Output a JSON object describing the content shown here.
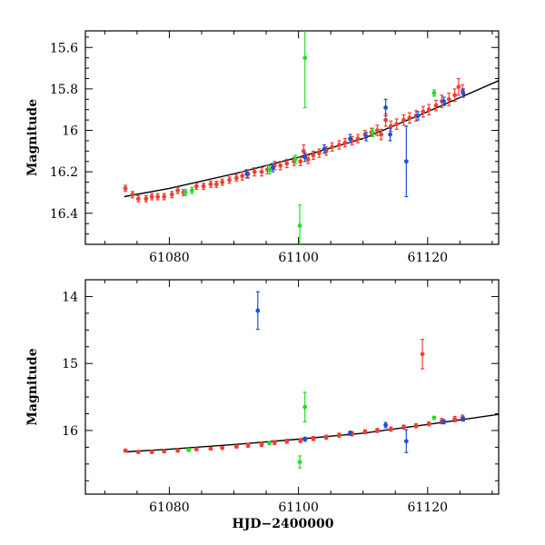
{
  "chart_data": [
    {
      "type": "scatter",
      "panel": "top",
      "xlabel": "",
      "ylabel": "Magnitude",
      "xlim": [
        61067,
        61131
      ],
      "ylim": [
        16.55,
        15.52
      ],
      "y_inverted": true,
      "x_ticks": [
        61080,
        61100,
        61120
      ],
      "y_ticks": [
        15.6,
        15.8,
        16,
        16.2,
        16.4
      ],
      "x_tick_labels": [
        "61080",
        "61100",
        "61120"
      ],
      "y_tick_labels": [
        "15.6",
        "15.8",
        "16",
        "16.2",
        "16.4"
      ],
      "model_curve": {
        "name": "model",
        "color": "#000000",
        "x": [
          61073,
          61080,
          61090,
          61100,
          61110,
          61120,
          61131
        ],
        "y": [
          16.32,
          16.28,
          16.21,
          16.13,
          16.04,
          15.91,
          15.76
        ]
      },
      "series": [
        {
          "name": "red",
          "color": "#f04030",
          "points": [
            [
              61073.2,
              16.28,
              0.015
            ],
            [
              61074.3,
              16.31,
              0.015
            ],
            [
              61075.2,
              16.33,
              0.015
            ],
            [
              61076.4,
              16.33,
              0.015
            ],
            [
              61077.3,
              16.32,
              0.015
            ],
            [
              61078.2,
              16.32,
              0.015
            ],
            [
              61079.2,
              16.32,
              0.015
            ],
            [
              61080.4,
              16.31,
              0.015
            ],
            [
              61081.3,
              16.29,
              0.015
            ],
            [
              61082.2,
              16.3,
              0.015
            ],
            [
              61084.2,
              16.27,
              0.015
            ],
            [
              61085.3,
              16.27,
              0.015
            ],
            [
              61086.4,
              16.26,
              0.015
            ],
            [
              61087.3,
              16.26,
              0.015
            ],
            [
              61088.2,
              16.25,
              0.015
            ],
            [
              61089.3,
              16.24,
              0.015
            ],
            [
              61090.4,
              16.23,
              0.015
            ],
            [
              61091.3,
              16.22,
              0.02
            ],
            [
              61092.2,
              16.21,
              0.02
            ],
            [
              61093.2,
              16.2,
              0.02
            ],
            [
              61094.3,
              16.2,
              0.02
            ],
            [
              61095.2,
              16.19,
              0.02
            ],
            [
              61096.3,
              16.17,
              0.02
            ],
            [
              61097.2,
              16.17,
              0.02
            ],
            [
              61098.2,
              16.16,
              0.02
            ],
            [
              61099.3,
              16.15,
              0.02
            ],
            [
              61100.3,
              16.15,
              0.02
            ],
            [
              61100.8,
              16.1,
              0.03
            ],
            [
              61101.5,
              16.14,
              0.02
            ],
            [
              61102.3,
              16.12,
              0.02
            ],
            [
              61103.2,
              16.11,
              0.02
            ],
            [
              61104.3,
              16.1,
              0.02
            ],
            [
              61105.2,
              16.08,
              0.02
            ],
            [
              61106.3,
              16.07,
              0.02
            ],
            [
              61107.2,
              16.06,
              0.02
            ],
            [
              61108.3,
              16.05,
              0.02
            ],
            [
              61109.2,
              16.04,
              0.02
            ],
            [
              61110.3,
              16.02,
              0.02
            ],
            [
              61111.3,
              16.01,
              0.02
            ],
            [
              61112.2,
              16.0,
              0.025
            ],
            [
              61112.8,
              16.02,
              0.025
            ],
            [
              61113.5,
              15.95,
              0.03
            ],
            [
              61114.3,
              15.98,
              0.025
            ],
            [
              61115.2,
              15.97,
              0.025
            ],
            [
              61116.3,
              15.95,
              0.025
            ],
            [
              61117.2,
              15.94,
              0.025
            ],
            [
              61118.2,
              15.93,
              0.025
            ],
            [
              61119.3,
              15.91,
              0.025
            ],
            [
              61120.2,
              15.9,
              0.025
            ],
            [
              61121.3,
              15.88,
              0.025
            ],
            [
              61122.2,
              15.86,
              0.03
            ],
            [
              61123.3,
              15.85,
              0.03
            ],
            [
              61124.2,
              15.83,
              0.03
            ],
            [
              61124.8,
              15.79,
              0.04
            ],
            [
              61125.4,
              15.81,
              0.03
            ]
          ]
        },
        {
          "name": "blue",
          "color": "#1f4fd8",
          "points": [
            [
              61092.0,
              16.21,
              0.02
            ],
            [
              61096.0,
              16.18,
              0.02
            ],
            [
              61101.0,
              16.13,
              0.02
            ],
            [
              61104.0,
              16.09,
              0.02
            ],
            [
              61108.0,
              16.04,
              0.02
            ],
            [
              61110.5,
              16.03,
              0.02
            ],
            [
              61113.5,
              15.89,
              0.04
            ],
            [
              61114.2,
              16.02,
              0.03
            ],
            [
              61116.7,
              16.15,
              0.17
            ],
            [
              61118.5,
              15.93,
              0.02
            ],
            [
              61122.5,
              15.86,
              0.02
            ],
            [
              61125.5,
              15.82,
              0.02
            ]
          ]
        },
        {
          "name": "green",
          "color": "#22dd22",
          "points": [
            [
              61082.5,
              16.3,
              0.015
            ],
            [
              61083.5,
              16.29,
              0.015
            ],
            [
              61095.5,
              16.19,
              0.02
            ],
            [
              61099.5,
              16.14,
              0.02
            ],
            [
              61101.0,
              15.65,
              0.24
            ],
            [
              61100.2,
              16.46,
              0.1
            ],
            [
              61111.5,
              16.01,
              0.02
            ],
            [
              61121.0,
              15.82,
              0.015
            ]
          ]
        }
      ]
    },
    {
      "type": "scatter",
      "panel": "bottom",
      "xlabel": "HJD−2400000",
      "ylabel": "Magnitude",
      "xlim": [
        61067,
        61131
      ],
      "ylim": [
        16.95,
        13.75
      ],
      "y_inverted": true,
      "x_ticks": [
        61080,
        61100,
        61120
      ],
      "y_ticks": [
        14,
        15,
        16
      ],
      "x_tick_labels": [
        "61080",
        "61100",
        "61120"
      ],
      "y_tick_labels": [
        "14",
        "15",
        "16"
      ],
      "model_curve": {
        "name": "model",
        "color": "#000000",
        "x": [
          61073,
          61080,
          61090,
          61100,
          61110,
          61120,
          61131
        ],
        "y": [
          16.32,
          16.28,
          16.21,
          16.13,
          16.04,
          15.91,
          15.76
        ]
      },
      "series": [
        {
          "name": "red",
          "color": "#f04030",
          "points": [
            [
              61073.2,
              16.3,
              0.02
            ],
            [
              61075.2,
              16.32,
              0.02
            ],
            [
              61077.3,
              16.32,
              0.02
            ],
            [
              61079.2,
              16.31,
              0.02
            ],
            [
              61081.3,
              16.3,
              0.02
            ],
            [
              61084.2,
              16.28,
              0.02
            ],
            [
              61086.4,
              16.27,
              0.02
            ],
            [
              61088.2,
              16.26,
              0.02
            ],
            [
              61090.4,
              16.24,
              0.02
            ],
            [
              61092.2,
              16.22,
              0.03
            ],
            [
              61094.3,
              16.21,
              0.03
            ],
            [
              61096.3,
              16.18,
              0.03
            ],
            [
              61098.2,
              16.16,
              0.03
            ],
            [
              61100.3,
              16.15,
              0.03
            ],
            [
              61102.3,
              16.12,
              0.03
            ],
            [
              61104.3,
              16.1,
              0.03
            ],
            [
              61106.3,
              16.07,
              0.03
            ],
            [
              61108.3,
              16.05,
              0.03
            ],
            [
              61110.3,
              16.02,
              0.03
            ],
            [
              61112.2,
              16.0,
              0.03
            ],
            [
              61114.3,
              15.98,
              0.03
            ],
            [
              61116.3,
              15.95,
              0.03
            ],
            [
              61118.2,
              15.93,
              0.03
            ],
            [
              61119.2,
              14.86,
              0.22
            ],
            [
              61120.2,
              15.9,
              0.03
            ],
            [
              61122.2,
              15.86,
              0.04
            ],
            [
              61124.2,
              15.83,
              0.04
            ],
            [
              61125.4,
              15.81,
              0.04
            ]
          ]
        },
        {
          "name": "blue",
          "color": "#1f4fd8",
          "points": [
            [
              61093.7,
              14.21,
              0.28
            ],
            [
              61101.0,
              16.13,
              0.03
            ],
            [
              61108.0,
              16.04,
              0.03
            ],
            [
              61113.5,
              15.92,
              0.04
            ],
            [
              61116.7,
              16.16,
              0.17
            ],
            [
              61122.5,
              15.87,
              0.03
            ],
            [
              61125.5,
              15.83,
              0.03
            ]
          ]
        },
        {
          "name": "green",
          "color": "#22dd22",
          "points": [
            [
              61083.0,
              16.29,
              0.02
            ],
            [
              61095.5,
              16.19,
              0.02
            ],
            [
              61101.0,
              15.65,
              0.22
            ],
            [
              61100.2,
              16.47,
              0.09
            ],
            [
              61121.0,
              15.81,
              0.02
            ]
          ]
        }
      ]
    }
  ]
}
